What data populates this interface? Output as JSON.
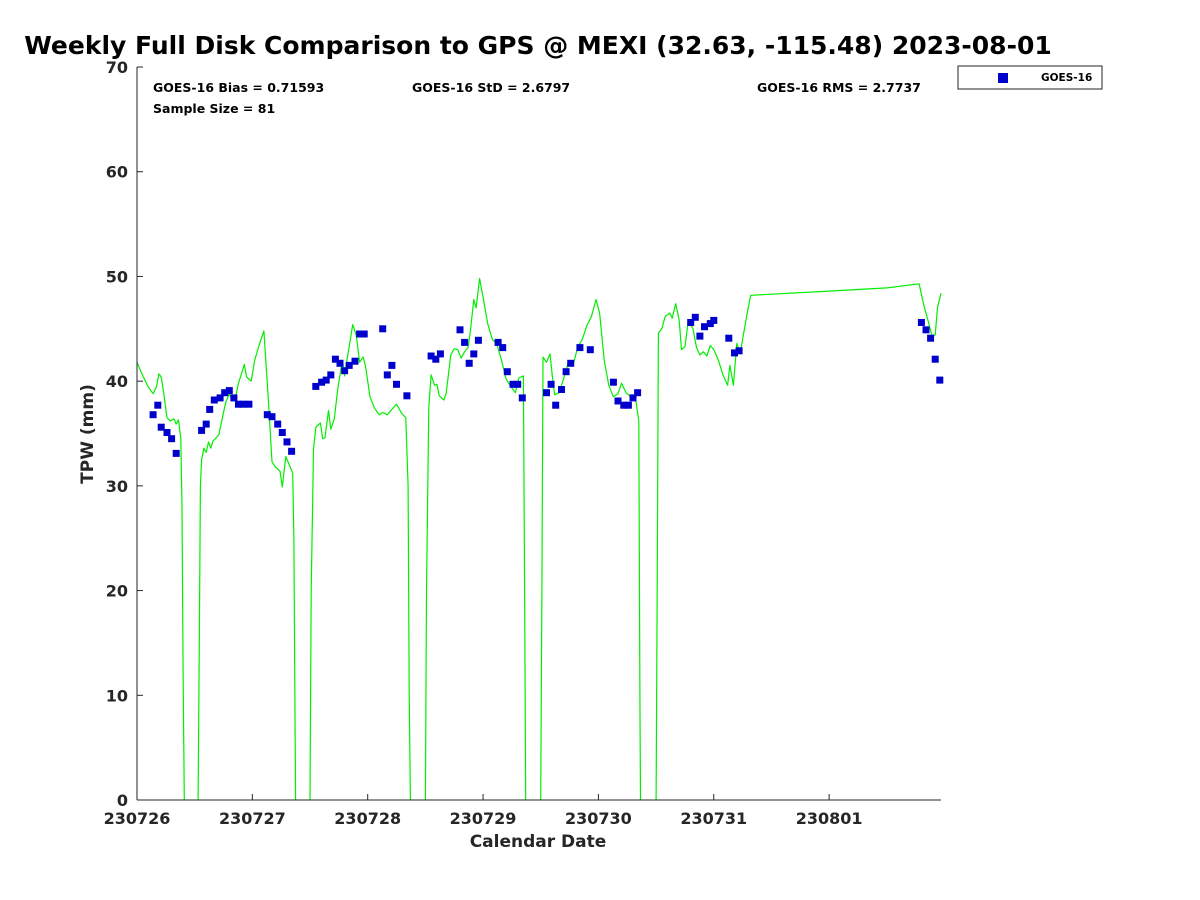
{
  "chart_data": {
    "type": "scatter",
    "title": "Weekly Full Disk Comparison to GPS @ MEXI (32.63, -115.48) 2023-08-01",
    "xlabel": "Calendar Date",
    "ylabel": "TPW (mm)",
    "ylim": [
      0,
      70
    ],
    "yticks": [
      0,
      10,
      20,
      30,
      40,
      50,
      60,
      70
    ],
    "xlim": [
      0,
      6.97
    ],
    "xtick_positions": [
      0,
      1,
      2,
      3,
      4,
      5,
      6
    ],
    "xtick_labels": [
      "230726",
      "230727",
      "230728",
      "230729",
      "230730",
      "230731",
      "230801"
    ],
    "legend_position": "outside-top-right",
    "grid": false,
    "stats": {
      "bias": "GOES-16 Bias = 0.71593",
      "std": "GOES-16 StD = 2.6797",
      "rms": "GOES-16 RMS = 2.7737",
      "sample_size": "Sample Size = 81"
    },
    "series": [
      {
        "name": "GOES-16",
        "kind": "scatter",
        "marker": "square",
        "color": "#0000cd",
        "points": [
          [
            0.14,
            36.8
          ],
          [
            0.18,
            37.7
          ],
          [
            0.21,
            35.6
          ],
          [
            0.26,
            35.1
          ],
          [
            0.3,
            34.5
          ],
          [
            0.34,
            33.1
          ],
          [
            0.56,
            35.3
          ],
          [
            0.6,
            35.9
          ],
          [
            0.63,
            37.3
          ],
          [
            0.67,
            38.2
          ],
          [
            0.72,
            38.4
          ],
          [
            0.76,
            38.9
          ],
          [
            0.8,
            39.1
          ],
          [
            0.84,
            38.4
          ],
          [
            0.88,
            37.8
          ],
          [
            0.92,
            37.8
          ],
          [
            0.97,
            37.8
          ],
          [
            1.13,
            36.8
          ],
          [
            1.17,
            36.6
          ],
          [
            1.22,
            35.9
          ],
          [
            1.26,
            35.1
          ],
          [
            1.3,
            34.2
          ],
          [
            1.34,
            33.3
          ],
          [
            1.55,
            39.5
          ],
          [
            1.6,
            39.9
          ],
          [
            1.64,
            40.1
          ],
          [
            1.68,
            40.6
          ],
          [
            1.72,
            42.1
          ],
          [
            1.76,
            41.7
          ],
          [
            1.8,
            41.0
          ],
          [
            1.84,
            41.5
          ],
          [
            1.89,
            41.9
          ],
          [
            1.93,
            44.5
          ],
          [
            1.97,
            44.5
          ],
          [
            2.13,
            45.0
          ],
          [
            2.17,
            40.6
          ],
          [
            2.21,
            41.5
          ],
          [
            2.25,
            39.7
          ],
          [
            2.34,
            38.6
          ],
          [
            2.55,
            42.4
          ],
          [
            2.59,
            42.1
          ],
          [
            2.63,
            42.6
          ],
          [
            2.8,
            44.9
          ],
          [
            2.84,
            43.7
          ],
          [
            2.88,
            41.7
          ],
          [
            2.92,
            42.6
          ],
          [
            2.96,
            43.9
          ],
          [
            3.13,
            43.7
          ],
          [
            3.17,
            43.2
          ],
          [
            3.21,
            40.9
          ],
          [
            3.26,
            39.7
          ],
          [
            3.3,
            39.7
          ],
          [
            3.34,
            38.4
          ],
          [
            3.55,
            38.9
          ],
          [
            3.59,
            39.7
          ],
          [
            3.63,
            37.7
          ],
          [
            3.68,
            39.2
          ],
          [
            3.72,
            40.9
          ],
          [
            3.76,
            41.7
          ],
          [
            3.84,
            43.2
          ],
          [
            3.93,
            43.0
          ],
          [
            4.13,
            39.9
          ],
          [
            4.17,
            38.1
          ],
          [
            4.22,
            37.7
          ],
          [
            4.26,
            37.7
          ],
          [
            4.3,
            38.4
          ],
          [
            4.34,
            38.9
          ],
          [
            4.8,
            45.6
          ],
          [
            4.84,
            46.1
          ],
          [
            4.88,
            44.3
          ],
          [
            4.92,
            45.2
          ],
          [
            4.97,
            45.5
          ],
          [
            5.0,
            45.8
          ],
          [
            5.13,
            44.1
          ],
          [
            5.18,
            42.7
          ],
          [
            5.22,
            42.9
          ],
          [
            6.8,
            45.6
          ],
          [
            6.84,
            44.9
          ],
          [
            6.88,
            44.1
          ],
          [
            6.92,
            42.1
          ],
          [
            6.96,
            40.1
          ]
        ]
      },
      {
        "name": "",
        "kind": "line",
        "color": "#00ee00",
        "segments": [
          [
            [
              0,
              41.8
            ],
            [
              0.05,
              40.5
            ],
            [
              0.1,
              39.4
            ],
            [
              0.14,
              38.8
            ],
            [
              0.17,
              39.5
            ],
            [
              0.19,
              40.7
            ],
            [
              0.21,
              40.4
            ],
            [
              0.23,
              39.0
            ],
            [
              0.26,
              36.5
            ],
            [
              0.29,
              36.2
            ],
            [
              0.32,
              36.4
            ],
            [
              0.34,
              35.9
            ],
            [
              0.36,
              36.3
            ],
            [
              0.38,
              34.5
            ],
            [
              0.39,
              28.0
            ],
            [
              0.4,
              12.0
            ],
            [
              0.41,
              0
            ]
          ],
          [
            [
              0.53,
              0
            ],
            [
              0.54,
              15.0
            ],
            [
              0.55,
              30.0
            ],
            [
              0.56,
              32.5
            ],
            [
              0.58,
              33.6
            ],
            [
              0.6,
              33.2
            ],
            [
              0.62,
              34.2
            ],
            [
              0.64,
              33.6
            ],
            [
              0.66,
              34.3
            ],
            [
              0.68,
              34.5
            ],
            [
              0.71,
              34.9
            ],
            [
              0.74,
              36.5
            ],
            [
              0.77,
              38.0
            ],
            [
              0.8,
              38.8
            ],
            [
              0.83,
              38.1
            ],
            [
              0.86,
              38.8
            ],
            [
              0.88,
              39.8
            ],
            [
              0.9,
              40.5
            ],
            [
              0.93,
              41.6
            ],
            [
              0.95,
              40.4
            ],
            [
              0.97,
              40.2
            ],
            [
              0.99,
              40.0
            ],
            [
              1.02,
              42.0
            ],
            [
              1.06,
              43.5
            ],
            [
              1.1,
              44.8
            ],
            [
              1.14,
              38.0
            ],
            [
              1.17,
              32.3
            ],
            [
              1.2,
              31.8
            ],
            [
              1.24,
              31.4
            ],
            [
              1.26,
              29.9
            ],
            [
              1.29,
              32.8
            ],
            [
              1.32,
              32.0
            ],
            [
              1.35,
              31.2
            ],
            [
              1.36,
              25.0
            ],
            [
              1.37,
              8.0
            ],
            [
              1.375,
              0
            ]
          ],
          [
            [
              1.5,
              0
            ],
            [
              1.51,
              20.0
            ],
            [
              1.53,
              33.5
            ],
            [
              1.55,
              35.6
            ],
            [
              1.59,
              36.0
            ],
            [
              1.61,
              34.5
            ],
            [
              1.63,
              34.6
            ],
            [
              1.66,
              37.2
            ],
            [
              1.68,
              35.4
            ],
            [
              1.71,
              36.4
            ],
            [
              1.74,
              39.2
            ],
            [
              1.78,
              42.0
            ],
            [
              1.8,
              40.5
            ],
            [
              1.82,
              42.0
            ],
            [
              1.85,
              44.0
            ],
            [
              1.87,
              45.4
            ],
            [
              1.9,
              44.4
            ],
            [
              1.93,
              41.8
            ],
            [
              1.96,
              42.3
            ],
            [
              1.98,
              41.5
            ],
            [
              2.02,
              38.5
            ],
            [
              2.06,
              37.4
            ],
            [
              2.1,
              36.8
            ],
            [
              2.13,
              37.0
            ],
            [
              2.17,
              36.8
            ],
            [
              2.21,
              37.3
            ],
            [
              2.25,
              37.8
            ],
            [
              2.29,
              37.0
            ],
            [
              2.33,
              36.5
            ],
            [
              2.35,
              30.0
            ],
            [
              2.36,
              10.0
            ],
            [
              2.37,
              0
            ]
          ],
          [
            [
              2.5,
              0
            ],
            [
              2.51,
              20.0
            ],
            [
              2.53,
              37.5
            ],
            [
              2.55,
              40.6
            ],
            [
              2.58,
              39.6
            ],
            [
              2.6,
              39.7
            ],
            [
              2.62,
              38.6
            ],
            [
              2.66,
              38.2
            ],
            [
              2.68,
              38.8
            ],
            [
              2.72,
              42.5
            ],
            [
              2.75,
              43.1
            ],
            [
              2.78,
              43.0
            ],
            [
              2.81,
              42.2
            ],
            [
              2.84,
              42.8
            ],
            [
              2.87,
              43.2
            ],
            [
              2.89,
              44.8
            ],
            [
              2.92,
              47.8
            ],
            [
              2.94,
              47.0
            ],
            [
              2.97,
              49.8
            ],
            [
              3.0,
              48.0
            ],
            [
              3.04,
              45.5
            ],
            [
              3.08,
              44.0
            ],
            [
              3.12,
              43.5
            ],
            [
              3.16,
              42.0
            ],
            [
              3.2,
              40.2
            ],
            [
              3.24,
              39.5
            ],
            [
              3.28,
              38.9
            ],
            [
              3.31,
              40.3
            ],
            [
              3.35,
              40.5
            ],
            [
              3.36,
              20.0
            ],
            [
              3.37,
              0
            ]
          ],
          [
            [
              3.5,
              0
            ],
            [
              3.51,
              20.0
            ],
            [
              3.52,
              42.3
            ],
            [
              3.55,
              41.8
            ],
            [
              3.58,
              42.6
            ],
            [
              3.6,
              40.5
            ],
            [
              3.62,
              38.7
            ],
            [
              3.66,
              38.9
            ],
            [
              3.7,
              40.3
            ],
            [
              3.74,
              41.8
            ],
            [
              3.78,
              41.5
            ],
            [
              3.82,
              43.2
            ],
            [
              3.86,
              44.0
            ],
            [
              3.9,
              45.3
            ],
            [
              3.94,
              46.2
            ],
            [
              3.98,
              47.8
            ],
            [
              4.01,
              46.5
            ],
            [
              4.05,
              42.0
            ],
            [
              4.09,
              39.6
            ],
            [
              4.13,
              38.5
            ],
            [
              4.17,
              38.8
            ],
            [
              4.2,
              39.8
            ],
            [
              4.24,
              38.9
            ],
            [
              4.28,
              38.5
            ],
            [
              4.32,
              38.5
            ],
            [
              4.35,
              36.2
            ],
            [
              4.36,
              10.0
            ],
            [
              4.365,
              0
            ]
          ],
          [
            [
              4.5,
              0
            ],
            [
              4.51,
              20.0
            ],
            [
              4.52,
              44.6
            ],
            [
              4.55,
              45.0
            ],
            [
              4.58,
              46.2
            ],
            [
              4.62,
              46.5
            ],
            [
              4.64,
              46.0
            ],
            [
              4.67,
              47.4
            ],
            [
              4.7,
              45.8
            ],
            [
              4.72,
              43.0
            ],
            [
              4.75,
              43.3
            ],
            [
              4.78,
              45.8
            ],
            [
              4.82,
              45.0
            ],
            [
              4.85,
              43.2
            ],
            [
              4.88,
              42.5
            ],
            [
              4.91,
              42.8
            ],
            [
              4.94,
              42.4
            ],
            [
              4.97,
              43.4
            ],
            [
              5.0,
              43.0
            ],
            [
              5.04,
              42.0
            ],
            [
              5.08,
              40.6
            ],
            [
              5.12,
              39.6
            ],
            [
              5.14,
              41.5
            ],
            [
              5.17,
              39.6
            ],
            [
              5.2,
              43.6
            ],
            [
              5.23,
              42.6
            ],
            [
              5.25,
              44.0
            ],
            [
              5.29,
              46.5
            ],
            [
              5.32,
              48.2
            ],
            [
              5.5,
              48.3
            ],
            [
              6.0,
              48.6
            ],
            [
              6.5,
              48.9
            ],
            [
              6.78,
              49.3
            ],
            [
              6.82,
              47.3
            ],
            [
              6.86,
              45.7
            ],
            [
              6.89,
              44.4
            ],
            [
              6.92,
              44.4
            ],
            [
              6.94,
              47.0
            ],
            [
              6.97,
              48.4
            ]
          ]
        ]
      }
    ]
  }
}
